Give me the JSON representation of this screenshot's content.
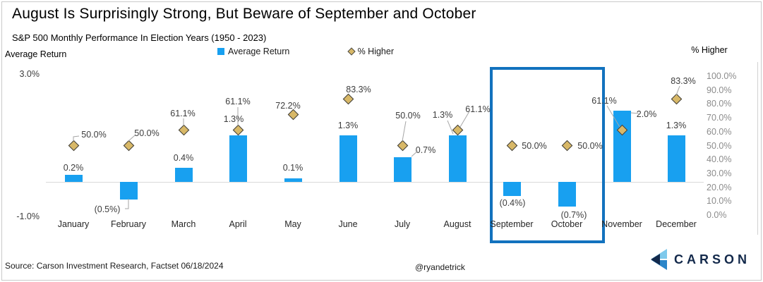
{
  "header": {
    "title": "August Is Surprisingly Strong, But Beware of September and October",
    "subtitle": "S&P 500 Monthly Performance In Election Years (1950 - 2023)"
  },
  "axes": {
    "left_title": "Average Return",
    "right_title": "% Higher",
    "left_ticks": [
      "3.0%",
      "-1.0%"
    ],
    "right_ticks": [
      "100.0%",
      "90.0%",
      "80.0%",
      "70.0%",
      "60.0%",
      "50.0%",
      "40.0%",
      "30.0%",
      "20.0%",
      "10.0%",
      "0.0%"
    ]
  },
  "legend": {
    "items": [
      {
        "label": "Average Return",
        "marker": "square",
        "color": "#18a0f0"
      },
      {
        "label": "% Higher",
        "marker": "diamond",
        "color": "#d8b867"
      }
    ]
  },
  "chart_data": {
    "type": "bar",
    "title": "S&P 500 Monthly Performance In Election Years (1950 - 2023)",
    "categories": [
      "January",
      "February",
      "March",
      "April",
      "May",
      "June",
      "July",
      "August",
      "September",
      "October",
      "November",
      "December"
    ],
    "series": [
      {
        "name": "Average Return",
        "type": "bar",
        "axis": "left",
        "values": [
          0.2,
          -0.5,
          0.4,
          1.3,
          0.1,
          1.3,
          0.7,
          1.3,
          -0.4,
          -0.7,
          2.0,
          1.3
        ],
        "labels": [
          "0.2%",
          "(0.5%)",
          "0.4%",
          "1.3%",
          "0.1%",
          "1.3%",
          "0.7%",
          "1.3%",
          "(0.4%)",
          "(0.7%)",
          "2.0%",
          "1.3%"
        ]
      },
      {
        "name": "% Higher",
        "type": "scatter",
        "marker": "diamond",
        "axis": "right",
        "values": [
          50.0,
          50.0,
          61.1,
          61.1,
          72.2,
          83.3,
          50.0,
          61.1,
          50.0,
          50.0,
          61.1,
          83.3
        ],
        "labels": [
          "50.0%",
          "50.0%",
          "61.1%",
          "61.1%",
          "72.2%",
          "83.3%",
          "50.0%",
          "61.1%",
          "50.0%",
          "50.0%",
          "61.1%",
          "83.3%"
        ]
      }
    ],
    "left_axis": {
      "label": "Average Return",
      "min": -1.0,
      "max": 3.0,
      "unit": "%"
    },
    "right_axis": {
      "label": "% Higher",
      "min": 0,
      "max": 100,
      "step": 10,
      "unit": "%"
    },
    "highlight": {
      "categories": [
        "September",
        "October"
      ],
      "border_color": "#1272be"
    },
    "grid": "zero-line-only",
    "legend_position": "top-center"
  },
  "colors": {
    "bar": "#18a0f0",
    "diamond_fill": "#d8b867",
    "diamond_border": "#3a3a3a",
    "highlight_border": "#1272be",
    "navy": "#13294b",
    "logo_light_blue": "#7ec9ec",
    "logo_mid_blue": "#2b86c9"
  },
  "footer": {
    "source": "Source: Carson Investment Research, Factset 06/18/2024",
    "handle": "@ryandetrick",
    "brand": "CARSON"
  }
}
